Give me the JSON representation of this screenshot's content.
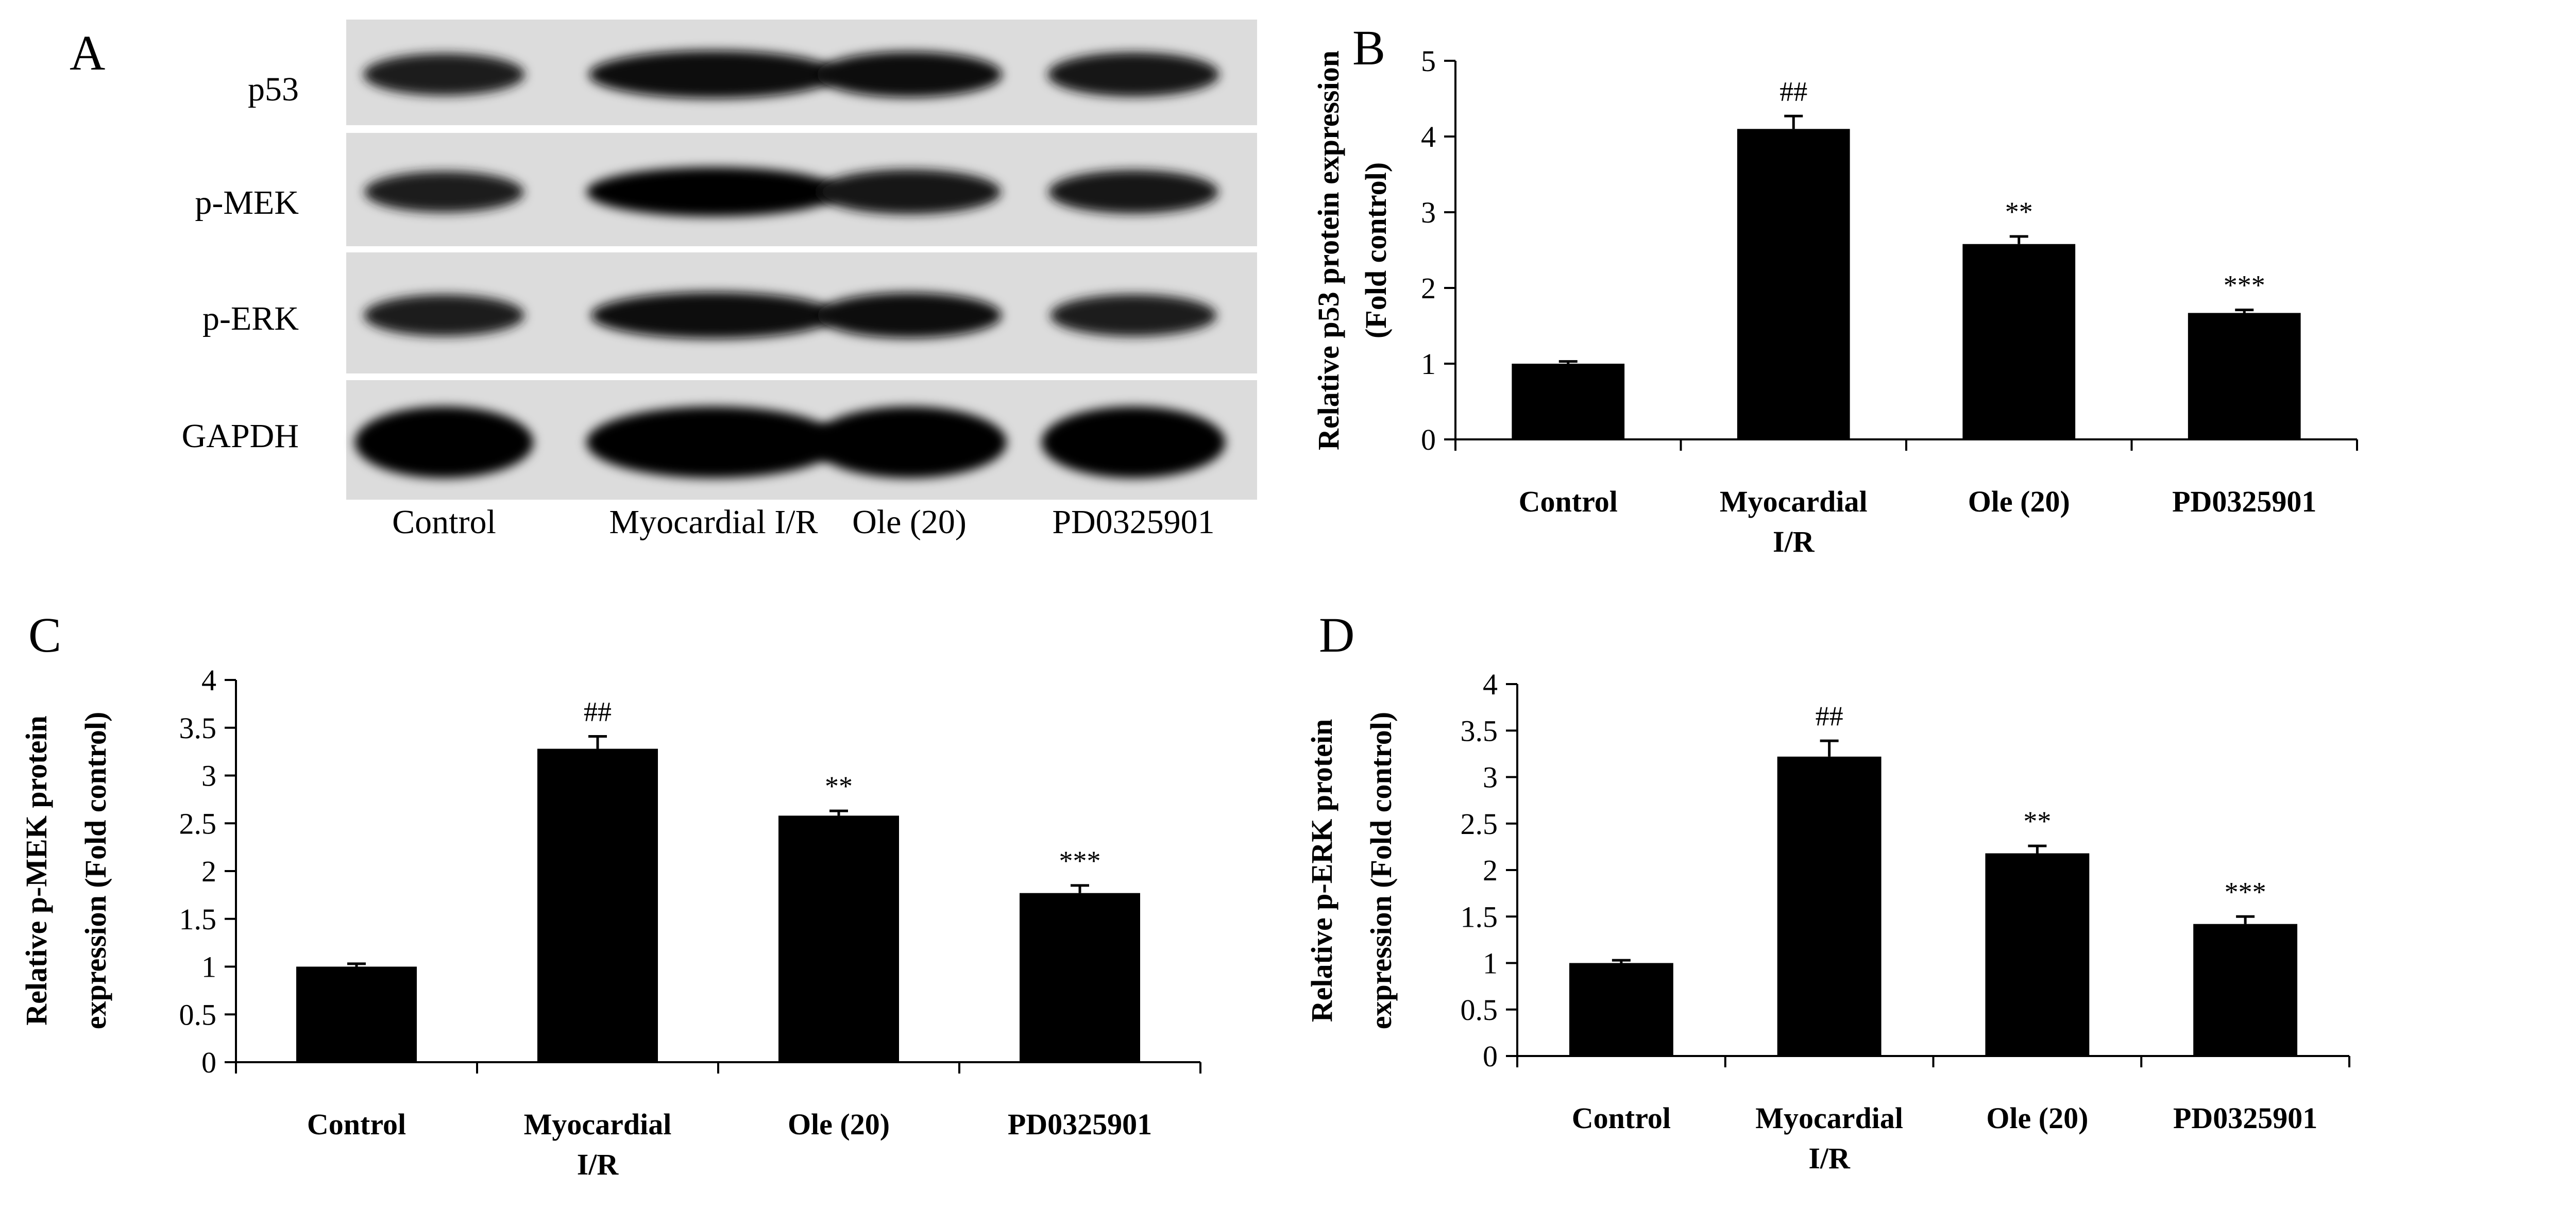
{
  "figure": {
    "panel_letters": [
      "A",
      "B",
      "C",
      "D"
    ]
  },
  "western_blot": {
    "rows": [
      "p53",
      "p-MEK",
      "p-ERK",
      "GAPDH"
    ],
    "lanes": [
      "Control",
      "Myocardial I/R",
      "Ole (20)",
      "PD0325901"
    ],
    "band_intensity": [
      [
        0.6,
        0.92,
        0.8,
        0.72
      ],
      [
        0.55,
        1.0,
        0.75,
        0.68
      ],
      [
        0.58,
        0.85,
        0.78,
        0.6
      ],
      [
        1.0,
        1.0,
        1.0,
        1.0
      ]
    ]
  },
  "chart_data": [
    {
      "panel": "B",
      "type": "bar",
      "categories": [
        "Control",
        "Myocardial I/R",
        "Ole (20)",
        "PD0325901"
      ],
      "category_lines": [
        [
          "Control"
        ],
        [
          "Myocardial",
          "I/R"
        ],
        [
          "Ole (20)"
        ],
        [
          "PD0325901"
        ]
      ],
      "values": [
        1.0,
        4.1,
        2.58,
        1.67
      ],
      "errors": [
        0.03,
        0.17,
        0.1,
        0.04
      ],
      "annotations": [
        "",
        "##",
        "**",
        "***"
      ],
      "ylabel_lines": [
        "Relative p53 protein expression",
        "(Fold control)"
      ],
      "ylim": [
        0,
        5
      ],
      "yticks": [
        0,
        1,
        2,
        3,
        4,
        5
      ],
      "ytick_labels": [
        "0",
        "1",
        "2",
        "3",
        "4",
        "5"
      ],
      "bar_color": "#000000",
      "grid": false
    },
    {
      "panel": "C",
      "type": "bar",
      "categories": [
        "Control",
        "Myocardial I/R",
        "Ole (20)",
        "PD0325901"
      ],
      "category_lines": [
        [
          "Control"
        ],
        [
          "Myocardial",
          "I/R"
        ],
        [
          "Ole (20)"
        ],
        [
          "PD0325901"
        ]
      ],
      "values": [
        1.0,
        3.28,
        2.58,
        1.77
      ],
      "errors": [
        0.03,
        0.13,
        0.05,
        0.08
      ],
      "annotations": [
        "",
        "##",
        "**",
        "***"
      ],
      "ylabel_lines": [
        "Relative p-MEK  protein",
        "expression  (Fold control)"
      ],
      "ylim": [
        0,
        4
      ],
      "yticks": [
        0,
        0.5,
        1,
        1.5,
        2,
        2.5,
        3,
        3.5,
        4
      ],
      "ytick_labels": [
        "0",
        "0.5",
        "1",
        "1.5",
        "2",
        "2.5",
        "3",
        "3.5",
        "4"
      ],
      "bar_color": "#000000",
      "grid": false
    },
    {
      "panel": "D",
      "type": "bar",
      "categories": [
        "Control",
        "Myocardial I/R",
        "Ole (20)",
        "PD0325901"
      ],
      "category_lines": [
        [
          "Control"
        ],
        [
          "Myocardial",
          "I/R"
        ],
        [
          "Ole (20)"
        ],
        [
          "PD0325901"
        ]
      ],
      "values": [
        1.0,
        3.22,
        2.18,
        1.42
      ],
      "errors": [
        0.03,
        0.17,
        0.08,
        0.08
      ],
      "annotations": [
        "",
        "##",
        "**",
        "***"
      ],
      "ylabel_lines": [
        "Relative p-ERK  protein",
        "expression  (Fold control)"
      ],
      "ylim": [
        0,
        4
      ],
      "yticks": [
        0,
        0.5,
        1,
        1.5,
        2,
        2.5,
        3,
        3.5,
        4
      ],
      "ytick_labels": [
        "0",
        "0.5",
        "1",
        "1.5",
        "2",
        "2.5",
        "3",
        "3.5",
        "4"
      ],
      "bar_color": "#000000",
      "grid": false
    }
  ]
}
